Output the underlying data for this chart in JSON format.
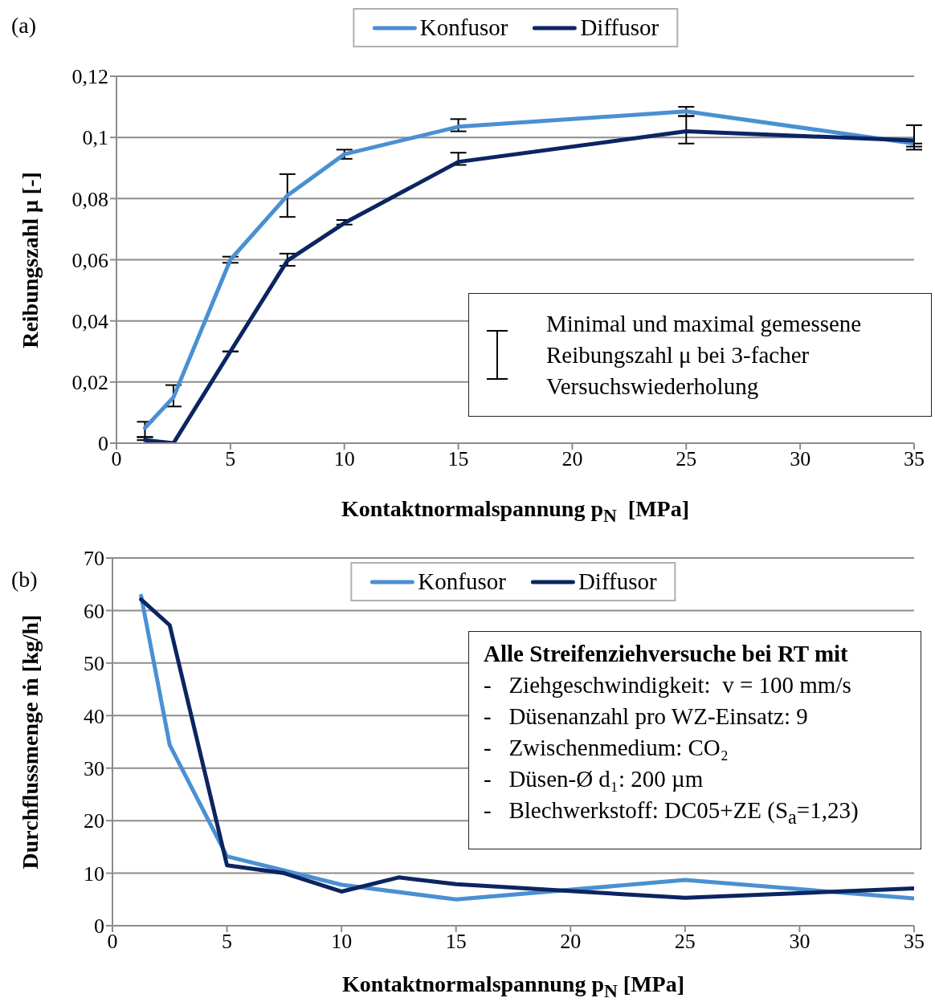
{
  "chart_data": [
    {
      "type": "line",
      "xlabel": "Kontaktnormalspannung p$_{N}$  [MPa]",
      "ylabel": "Reibungszahl μ [-]",
      "annotations": [
        "(a)",
        "Minimal und maximal gemessene Reibungszahl μ bei 3-facher Versuchswiederholung"
      ],
      "x": [
        1.25,
        2.5,
        5,
        7.5,
        10,
        15,
        25,
        35
      ],
      "series": [
        {
          "name": "Konfusor",
          "color": "#4a90d2",
          "values": [
            0.005,
            0.015,
            0.06,
            0.081,
            0.0945,
            0.1035,
            0.1085,
            0.098
          ],
          "errors": [
            [
              0.002,
              0.007
            ],
            [
              0.012,
              0.019
            ],
            [
              0.059,
              0.061
            ],
            [
              0.074,
              0.088
            ],
            [
              0.093,
              0.096
            ],
            [
              0.102,
              0.106
            ],
            [
              0.107,
              0.11
            ],
            [
              0.097,
              0.098
            ]
          ]
        },
        {
          "name": "Diffusor",
          "color": "#0b2561",
          "values": [
            0.001,
            0,
            0.03,
            0.0597,
            0.072,
            0.092,
            0.102,
            0.099
          ],
          "errors": [
            [
              0.001,
              0.002
            ],
            null,
            [
              0.03,
              0.03
            ],
            [
              0.058,
              0.062
            ],
            [
              0.0715,
              0.073
            ],
            [
              0.091,
              0.095
            ],
            [
              0.098,
              0.107
            ],
            [
              0.096,
              0.104
            ]
          ]
        }
      ],
      "xlim": [
        0,
        35
      ],
      "xticks": [
        0,
        5,
        10,
        15,
        20,
        25,
        30,
        35
      ],
      "ylim": [
        0,
        0.12
      ],
      "yticks": [
        {
          "value": 0,
          "label": "0"
        },
        {
          "value": 0.02,
          "label": "0,02"
        },
        {
          "value": 0.04,
          "label": "0,04"
        },
        {
          "value": 0.06,
          "label": "0,06"
        },
        {
          "value": 0.08,
          "label": "0,08"
        },
        {
          "value": 0.1,
          "label": "0,1"
        },
        {
          "value": 0.12,
          "label": "0,12"
        }
      ],
      "grid": "y",
      "legend": "top",
      "marker": "none",
      "line_style": "solid"
    },
    {
      "type": "line",
      "xlabel": "Kontaktnormalspannung p$_{N}$ [MPa]",
      "ylabel": "Durchflussmenge ṁ [kg/h]",
      "annotations": [
        "(b)",
        "Alle Streifenziehversuche bei RT mit",
        "-   Ziehgeschwindigkeit:  v = 100 mm/s",
        "-   Düsenanzahl pro WZ-Einsatz: 9",
        "-   Zwischenmedium: CO₂",
        "-   Düsen-Ø d₁: 200 µm",
        "-   Blechwerkstoff: DC05+ZE (S$_{a}$=1,23)"
      ],
      "series": [
        {
          "name": "Konfusor",
          "color": "#4a90d2",
          "x": [
            1.25,
            2.5,
            5,
            7.5,
            10,
            15,
            25,
            35
          ],
          "values": [
            62.8,
            34.4,
            13.2,
            10.5,
            7.8,
            5.0,
            8.7,
            5.2
          ]
        },
        {
          "name": "Diffusor",
          "color": "#0b2561",
          "x": [
            1.25,
            2.5,
            5,
            7.5,
            10,
            12.5,
            15,
            25,
            35
          ],
          "values": [
            62.1,
            57.2,
            11.5,
            10.0,
            6.5,
            9.2,
            7.9,
            5.3,
            7.1
          ]
        }
      ],
      "xlim": [
        0,
        35
      ],
      "xticks": [
        0,
        5,
        10,
        15,
        20,
        25,
        30,
        35
      ],
      "ylim": [
        0,
        70
      ],
      "yticks": [
        0,
        10,
        20,
        30,
        40,
        50,
        60,
        70
      ],
      "grid": "y",
      "legend": "top",
      "marker": "none",
      "line_style": "solid"
    }
  ]
}
